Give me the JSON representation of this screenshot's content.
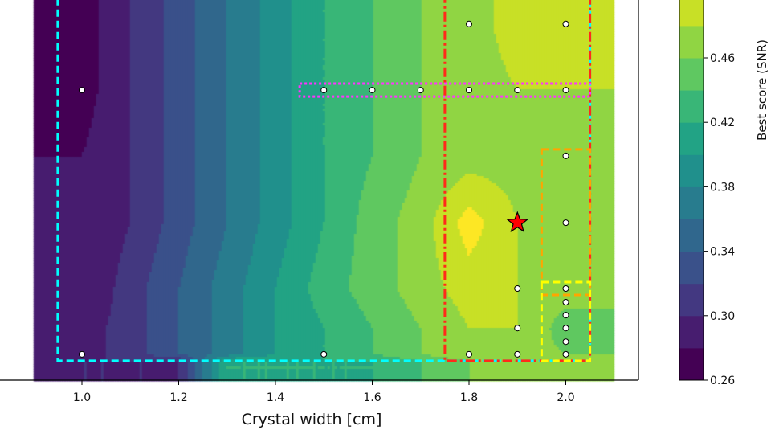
{
  "chart_data": {
    "type": "heatmap",
    "style": "filled-contour",
    "xlabel": "Crystal width [cm]",
    "xlim": [
      0.9,
      2.15
    ],
    "ylim": [
      0,
      10.2
    ],
    "x_ticks": [
      1.0,
      1.2,
      1.4,
      1.6,
      1.8,
      2.0
    ],
    "x_tick_labels": [
      "1.0",
      "1.2",
      "1.4",
      "1.6",
      "1.8",
      "2.0"
    ],
    "colorbar": {
      "label": "Best score (SNR)",
      "ticks": [
        0.26,
        0.3,
        0.34,
        0.38,
        0.42,
        0.46
      ],
      "tick_labels": [
        "0.26",
        "0.30",
        "0.34",
        "0.38",
        "0.42",
        "0.46"
      ],
      "level_step": 0.02,
      "range": [
        0.26,
        0.52
      ],
      "colormap": "viridis"
    },
    "grid_x": [
      0.9,
      1.0,
      1.1,
      1.2,
      1.3,
      1.4,
      1.5,
      1.6,
      1.7,
      1.8,
      1.9,
      2.0,
      2.1
    ],
    "grid_y": [
      0,
      0.5,
      0.68,
      1.37,
      2.41,
      4.14,
      5.9,
      7.63,
      9.37,
      10.2
    ],
    "z": [
      [
        0.3,
        0.3,
        0.3,
        0.3,
        0.42,
        0.42,
        0.42,
        0.42,
        0.44,
        0.46,
        0.47,
        0.47,
        0.47
      ],
      [
        0.3,
        0.3,
        0.3,
        0.3,
        0.42,
        0.42,
        0.42,
        0.42,
        0.44,
        0.46,
        0.47,
        0.47,
        0.47
      ],
      [
        0.29,
        0.29,
        0.31,
        0.34,
        0.37,
        0.4,
        0.42,
        0.44,
        0.46,
        0.48,
        0.47,
        0.46,
        0.46
      ],
      [
        0.29,
        0.29,
        0.31,
        0.34,
        0.37,
        0.4,
        0.42,
        0.44,
        0.46,
        0.48,
        0.48,
        0.45,
        0.45
      ],
      [
        0.28,
        0.28,
        0.31,
        0.34,
        0.37,
        0.4,
        0.43,
        0.45,
        0.47,
        0.49,
        0.48,
        0.47,
        0.47
      ],
      [
        0.28,
        0.28,
        0.3,
        0.33,
        0.36,
        0.39,
        0.42,
        0.45,
        0.47,
        0.51,
        0.48,
        0.48,
        0.48
      ],
      [
        0.28,
        0.28,
        0.3,
        0.33,
        0.36,
        0.39,
        0.42,
        0.44,
        0.46,
        0.47,
        0.47,
        0.47,
        0.47
      ],
      [
        0.27,
        0.27,
        0.3,
        0.33,
        0.36,
        0.39,
        0.42,
        0.44,
        0.46,
        0.47,
        0.48,
        0.48,
        0.48
      ],
      [
        0.27,
        0.27,
        0.3,
        0.33,
        0.36,
        0.39,
        0.42,
        0.44,
        0.46,
        0.47,
        0.49,
        0.49,
        0.49
      ],
      [
        0.27,
        0.27,
        0.3,
        0.33,
        0.36,
        0.39,
        0.42,
        0.44,
        0.46,
        0.47,
        0.49,
        0.49,
        0.49
      ]
    ],
    "sample_points": [
      [
        1.0,
        0.68
      ],
      [
        1.0,
        7.63
      ],
      [
        1.5,
        0.68
      ],
      [
        1.5,
        7.63
      ],
      [
        1.6,
        7.63
      ],
      [
        1.7,
        7.63
      ],
      [
        1.8,
        7.63
      ],
      [
        1.9,
        7.63
      ],
      [
        2.0,
        7.63
      ],
      [
        1.8,
        9.37
      ],
      [
        2.0,
        9.37
      ],
      [
        1.8,
        0.68
      ],
      [
        1.9,
        0.68
      ],
      [
        1.9,
        1.37
      ],
      [
        1.9,
        2.41
      ],
      [
        2.0,
        5.9
      ],
      [
        2.0,
        4.14
      ],
      [
        2.0,
        2.41
      ],
      [
        2.0,
        2.05
      ],
      [
        2.0,
        1.71
      ],
      [
        2.0,
        1.37
      ],
      [
        2.0,
        1.01
      ],
      [
        2.0,
        0.68
      ]
    ],
    "best_point": {
      "x": 1.9,
      "y": 4.14,
      "marker": "star",
      "color": "#ff0000"
    },
    "regions": [
      {
        "color": "#00ffff",
        "style": "dashed",
        "x": [
          0.95,
          2.05
        ],
        "y": [
          0.51,
          10.2
        ]
      },
      {
        "color": "#ff2a1a",
        "style": "dashdot",
        "x": [
          1.75,
          2.05
        ],
        "y": [
          0.51,
          10.2
        ]
      },
      {
        "color": "#ff33ff",
        "style": "dotted",
        "x": [
          1.45,
          2.05
        ],
        "y": [
          7.46,
          7.8
        ]
      },
      {
        "color": "#ffa500",
        "style": "dashed",
        "x": [
          1.95,
          2.05
        ],
        "y": [
          2.24,
          6.07
        ]
      },
      {
        "color": "#ffff00",
        "style": "dashed",
        "x": [
          1.95,
          2.05
        ],
        "y": [
          0.51,
          2.58
        ]
      }
    ]
  }
}
